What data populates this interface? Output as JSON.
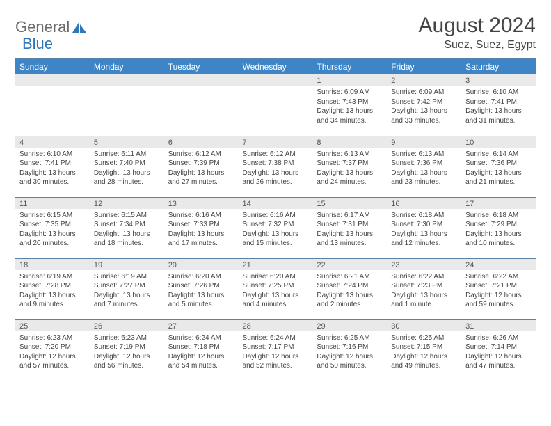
{
  "brand": {
    "general": "General",
    "blue": "Blue"
  },
  "title": "August 2024",
  "location": "Suez, Suez, Egypt",
  "colors": {
    "header_bg": "#3d85c6",
    "rule": "#5a83a8",
    "daynum_bg": "#e9e9e9",
    "text": "#444444",
    "logo_gray": "#6a6a6a",
    "logo_blue": "#2e77b8"
  },
  "weekdays": [
    "Sunday",
    "Monday",
    "Tuesday",
    "Wednesday",
    "Thursday",
    "Friday",
    "Saturday"
  ],
  "first_weekday_index": 4,
  "days": [
    {
      "n": 1,
      "sunrise": "6:09 AM",
      "sunset": "7:43 PM",
      "daylight": "13 hours and 34 minutes."
    },
    {
      "n": 2,
      "sunrise": "6:09 AM",
      "sunset": "7:42 PM",
      "daylight": "13 hours and 33 minutes."
    },
    {
      "n": 3,
      "sunrise": "6:10 AM",
      "sunset": "7:41 PM",
      "daylight": "13 hours and 31 minutes."
    },
    {
      "n": 4,
      "sunrise": "6:10 AM",
      "sunset": "7:41 PM",
      "daylight": "13 hours and 30 minutes."
    },
    {
      "n": 5,
      "sunrise": "6:11 AM",
      "sunset": "7:40 PM",
      "daylight": "13 hours and 28 minutes."
    },
    {
      "n": 6,
      "sunrise": "6:12 AM",
      "sunset": "7:39 PM",
      "daylight": "13 hours and 27 minutes."
    },
    {
      "n": 7,
      "sunrise": "6:12 AM",
      "sunset": "7:38 PM",
      "daylight": "13 hours and 26 minutes."
    },
    {
      "n": 8,
      "sunrise": "6:13 AM",
      "sunset": "7:37 PM",
      "daylight": "13 hours and 24 minutes."
    },
    {
      "n": 9,
      "sunrise": "6:13 AM",
      "sunset": "7:36 PM",
      "daylight": "13 hours and 23 minutes."
    },
    {
      "n": 10,
      "sunrise": "6:14 AM",
      "sunset": "7:36 PM",
      "daylight": "13 hours and 21 minutes."
    },
    {
      "n": 11,
      "sunrise": "6:15 AM",
      "sunset": "7:35 PM",
      "daylight": "13 hours and 20 minutes."
    },
    {
      "n": 12,
      "sunrise": "6:15 AM",
      "sunset": "7:34 PM",
      "daylight": "13 hours and 18 minutes."
    },
    {
      "n": 13,
      "sunrise": "6:16 AM",
      "sunset": "7:33 PM",
      "daylight": "13 hours and 17 minutes."
    },
    {
      "n": 14,
      "sunrise": "6:16 AM",
      "sunset": "7:32 PM",
      "daylight": "13 hours and 15 minutes."
    },
    {
      "n": 15,
      "sunrise": "6:17 AM",
      "sunset": "7:31 PM",
      "daylight": "13 hours and 13 minutes."
    },
    {
      "n": 16,
      "sunrise": "6:18 AM",
      "sunset": "7:30 PM",
      "daylight": "13 hours and 12 minutes."
    },
    {
      "n": 17,
      "sunrise": "6:18 AM",
      "sunset": "7:29 PM",
      "daylight": "13 hours and 10 minutes."
    },
    {
      "n": 18,
      "sunrise": "6:19 AM",
      "sunset": "7:28 PM",
      "daylight": "13 hours and 9 minutes."
    },
    {
      "n": 19,
      "sunrise": "6:19 AM",
      "sunset": "7:27 PM",
      "daylight": "13 hours and 7 minutes."
    },
    {
      "n": 20,
      "sunrise": "6:20 AM",
      "sunset": "7:26 PM",
      "daylight": "13 hours and 5 minutes."
    },
    {
      "n": 21,
      "sunrise": "6:20 AM",
      "sunset": "7:25 PM",
      "daylight": "13 hours and 4 minutes."
    },
    {
      "n": 22,
      "sunrise": "6:21 AM",
      "sunset": "7:24 PM",
      "daylight": "13 hours and 2 minutes."
    },
    {
      "n": 23,
      "sunrise": "6:22 AM",
      "sunset": "7:23 PM",
      "daylight": "13 hours and 1 minute."
    },
    {
      "n": 24,
      "sunrise": "6:22 AM",
      "sunset": "7:21 PM",
      "daylight": "12 hours and 59 minutes."
    },
    {
      "n": 25,
      "sunrise": "6:23 AM",
      "sunset": "7:20 PM",
      "daylight": "12 hours and 57 minutes."
    },
    {
      "n": 26,
      "sunrise": "6:23 AM",
      "sunset": "7:19 PM",
      "daylight": "12 hours and 56 minutes."
    },
    {
      "n": 27,
      "sunrise": "6:24 AM",
      "sunset": "7:18 PM",
      "daylight": "12 hours and 54 minutes."
    },
    {
      "n": 28,
      "sunrise": "6:24 AM",
      "sunset": "7:17 PM",
      "daylight": "12 hours and 52 minutes."
    },
    {
      "n": 29,
      "sunrise": "6:25 AM",
      "sunset": "7:16 PM",
      "daylight": "12 hours and 50 minutes."
    },
    {
      "n": 30,
      "sunrise": "6:25 AM",
      "sunset": "7:15 PM",
      "daylight": "12 hours and 49 minutes."
    },
    {
      "n": 31,
      "sunrise": "6:26 AM",
      "sunset": "7:14 PM",
      "daylight": "12 hours and 47 minutes."
    }
  ],
  "labels": {
    "sunrise": "Sunrise:",
    "sunset": "Sunset:",
    "daylight": "Daylight:"
  }
}
